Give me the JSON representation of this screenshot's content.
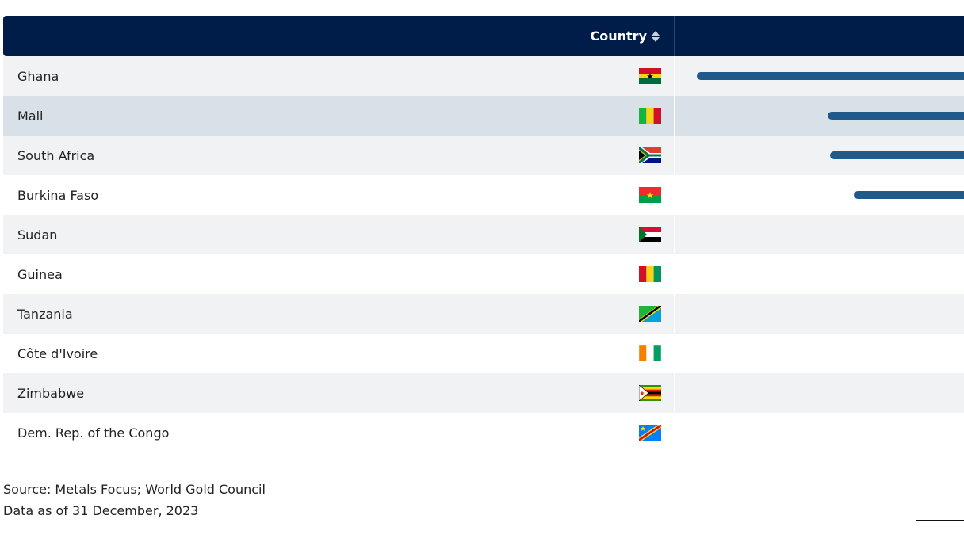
{
  "table": {
    "header": {
      "country_label": "Country",
      "sort_icon": "sort-arrows-icon"
    },
    "rows": [
      {
        "country": "Ghana",
        "flag": "ghana-flag-icon",
        "bar_fraction": 0.996
      },
      {
        "country": "Mali",
        "flag": "mali-flag-icon",
        "bar_fraction": 0.51
      },
      {
        "country": "South Africa",
        "flag": "south-africa-flag-icon",
        "bar_fraction": 0.5
      },
      {
        "country": "Burkina Faso",
        "flag": "burkina-faso-flag-icon",
        "bar_fraction": 0.41
      },
      {
        "country": "Sudan",
        "flag": "sudan-flag-icon",
        "bar_fraction": 0
      },
      {
        "country": "Guinea",
        "flag": "guinea-flag-icon",
        "bar_fraction": 0
      },
      {
        "country": "Tanzania",
        "flag": "tanzania-flag-icon",
        "bar_fraction": 0
      },
      {
        "country": "Côte d'Ivoire",
        "flag": "cote-divoire-flag-icon",
        "bar_fraction": 0
      },
      {
        "country": "Zimbabwe",
        "flag": "zimbabwe-flag-icon",
        "bar_fraction": 0
      },
      {
        "country": "Dem. Rep. of the Congo",
        "flag": "dr-congo-flag-icon",
        "bar_fraction": 0
      }
    ]
  },
  "footer": {
    "source": "Source: Metals Focus; World Gold Council",
    "date": "Data as of 31 December, 2023"
  },
  "colors": {
    "header_bg": "#001d4a",
    "bar": "#1f5a8b",
    "row_shade": "#f1f2f4",
    "row_hover": "#d9e1e8"
  }
}
